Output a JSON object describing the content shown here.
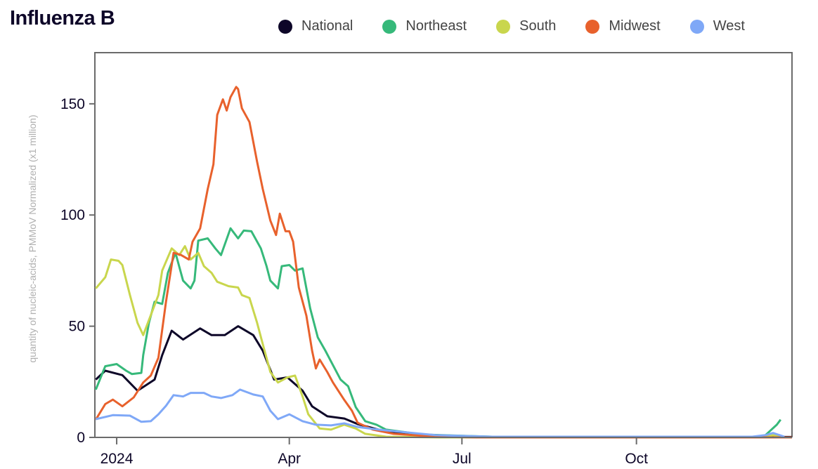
{
  "chart_data": {
    "type": "line",
    "title": "Influenza B",
    "xlabel": "",
    "ylabel": "quantity of nucleic-acids, PMMoV Normalized (x1 million)",
    "x_units": "days since 2024-01-01",
    "xlim": [
      -11.5,
      356
    ],
    "ylim": [
      0,
      173
    ],
    "x_ticks": [
      {
        "value": 0,
        "label": "2024"
      },
      {
        "value": 91,
        "label": "Apr"
      },
      {
        "value": 182,
        "label": "Jul"
      },
      {
        "value": 274,
        "label": "Oct"
      }
    ],
    "y_ticks": [
      {
        "value": 0,
        "label": "0"
      },
      {
        "value": 50,
        "label": "50"
      },
      {
        "value": 100,
        "label": "100"
      },
      {
        "value": 150,
        "label": "150"
      }
    ],
    "legend_position": "top-right",
    "series": [
      {
        "name": "National",
        "color": "#0d0628",
        "points": [
          [
            -11,
            26
          ],
          [
            -6,
            30
          ],
          [
            3,
            28
          ],
          [
            11,
            21
          ],
          [
            20,
            26
          ],
          [
            24,
            37
          ],
          [
            29,
            48
          ],
          [
            35,
            44
          ],
          [
            44,
            49
          ],
          [
            50,
            46
          ],
          [
            57,
            46
          ],
          [
            64,
            50
          ],
          [
            72,
            46
          ],
          [
            77,
            39
          ],
          [
            83,
            26
          ],
          [
            90,
            27
          ],
          [
            98,
            21
          ],
          [
            103,
            14
          ],
          [
            111,
            9.5
          ],
          [
            120,
            8.5
          ],
          [
            127,
            6
          ],
          [
            138,
            3.5
          ],
          [
            153,
            1.6
          ],
          [
            179,
            0.6
          ],
          [
            200,
            0.2
          ],
          [
            356,
            0.2
          ]
        ]
      },
      {
        "name": "Northeast",
        "color": "#36b97a",
        "points": [
          [
            -11,
            21.5
          ],
          [
            -6,
            32
          ],
          [
            0,
            33
          ],
          [
            5,
            30
          ],
          [
            8,
            28.5
          ],
          [
            13,
            29
          ],
          [
            14,
            37
          ],
          [
            17,
            51.5
          ],
          [
            20,
            61
          ],
          [
            24,
            60
          ],
          [
            27,
            74
          ],
          [
            31,
            83
          ],
          [
            35,
            70.5
          ],
          [
            39,
            67
          ],
          [
            41,
            70.5
          ],
          [
            43,
            88.5
          ],
          [
            48,
            89.5
          ],
          [
            52,
            85
          ],
          [
            55,
            82
          ],
          [
            60,
            94
          ],
          [
            64,
            89.5
          ],
          [
            67,
            93
          ],
          [
            71,
            92.7
          ],
          [
            76,
            85
          ],
          [
            79,
            77
          ],
          [
            81,
            70.5
          ],
          [
            85,
            67
          ],
          [
            87,
            77
          ],
          [
            91,
            77.5
          ],
          [
            94,
            75
          ],
          [
            98,
            76
          ],
          [
            102,
            58
          ],
          [
            106,
            45
          ],
          [
            110,
            39
          ],
          [
            114,
            32.5
          ],
          [
            118,
            26
          ],
          [
            122,
            23
          ],
          [
            126,
            13.6
          ],
          [
            131,
            7.3
          ],
          [
            137,
            5.7
          ],
          [
            142,
            3.5
          ],
          [
            161,
            1.3
          ],
          [
            198,
            0.3
          ],
          [
            340,
            0.3
          ],
          [
            342,
            1
          ],
          [
            348,
            5.7
          ],
          [
            350,
            8
          ]
        ]
      },
      {
        "name": "South",
        "color": "#c9d64d",
        "points": [
          [
            -11,
            67
          ],
          [
            -6,
            72
          ],
          [
            -3,
            80
          ],
          [
            1,
            79.4
          ],
          [
            3,
            77.5
          ],
          [
            7,
            64
          ],
          [
            11,
            51.5
          ],
          [
            14,
            46
          ],
          [
            18,
            55
          ],
          [
            22,
            64
          ],
          [
            24,
            75
          ],
          [
            29,
            85
          ],
          [
            33,
            82
          ],
          [
            36,
            86
          ],
          [
            39,
            80
          ],
          [
            43,
            83
          ],
          [
            46,
            77
          ],
          [
            50,
            74
          ],
          [
            53,
            70
          ],
          [
            59,
            68
          ],
          [
            64,
            67.4
          ],
          [
            66,
            64
          ],
          [
            70,
            62.7
          ],
          [
            74,
            51.6
          ],
          [
            77,
            42
          ],
          [
            81,
            29.4
          ],
          [
            85,
            24.7
          ],
          [
            90,
            27
          ],
          [
            94,
            27.8
          ],
          [
            98,
            18.4
          ],
          [
            101,
            10.4
          ],
          [
            107,
            4
          ],
          [
            113,
            3.5
          ],
          [
            120,
            5.7
          ],
          [
            126,
            4
          ],
          [
            131,
            1.6
          ],
          [
            142,
            0.3
          ],
          [
            170,
            0
          ],
          [
            340,
            0
          ],
          [
            346,
            1
          ],
          [
            350,
            0.3
          ]
        ]
      },
      {
        "name": "Midwest",
        "color": "#e8612c",
        "points": [
          [
            -11,
            8
          ],
          [
            -6,
            15
          ],
          [
            -2,
            17
          ],
          [
            3,
            14
          ],
          [
            9,
            18
          ],
          [
            14,
            24.7
          ],
          [
            18,
            27.8
          ],
          [
            22,
            35.8
          ],
          [
            26,
            61
          ],
          [
            30,
            83
          ],
          [
            34,
            82
          ],
          [
            38,
            80
          ],
          [
            40,
            88
          ],
          [
            44,
            94
          ],
          [
            48,
            111.7
          ],
          [
            51,
            122.8
          ],
          [
            53,
            145
          ],
          [
            56,
            152
          ],
          [
            58,
            147
          ],
          [
            60,
            153
          ],
          [
            63,
            157.6
          ],
          [
            64,
            156.6
          ],
          [
            66,
            148
          ],
          [
            70,
            141.8
          ],
          [
            74,
            124
          ],
          [
            77,
            111.7
          ],
          [
            81,
            97.5
          ],
          [
            84,
            91
          ],
          [
            86,
            100.6
          ],
          [
            89,
            92.7
          ],
          [
            91,
            92.7
          ],
          [
            93,
            88
          ],
          [
            96,
            67.4
          ],
          [
            100,
            54.7
          ],
          [
            103,
            39
          ],
          [
            105,
            31
          ],
          [
            107,
            35
          ],
          [
            111,
            29.4
          ],
          [
            114,
            24.7
          ],
          [
            120,
            16.8
          ],
          [
            124,
            12
          ],
          [
            127,
            6.6
          ],
          [
            135,
            3.5
          ],
          [
            146,
            1.6
          ],
          [
            168,
            0.3
          ],
          [
            190,
            0
          ],
          [
            356,
            0
          ]
        ]
      },
      {
        "name": "West",
        "color": "#7fa8f7",
        "points": [
          [
            -11,
            8.2
          ],
          [
            -2,
            10
          ],
          [
            7,
            9.8
          ],
          [
            13,
            7
          ],
          [
            18,
            7.3
          ],
          [
            22,
            10.4
          ],
          [
            26,
            14.2
          ],
          [
            30,
            19
          ],
          [
            35,
            18.4
          ],
          [
            39,
            20
          ],
          [
            46,
            20
          ],
          [
            50,
            18.4
          ],
          [
            55,
            17.7
          ],
          [
            61,
            19
          ],
          [
            65,
            21.5
          ],
          [
            72,
            19.3
          ],
          [
            77,
            18.4
          ],
          [
            81,
            12
          ],
          [
            85,
            8.2
          ],
          [
            91,
            10.4
          ],
          [
            98,
            7.3
          ],
          [
            105,
            5.7
          ],
          [
            113,
            5.4
          ],
          [
            120,
            6.3
          ],
          [
            127,
            4.7
          ],
          [
            138,
            3.5
          ],
          [
            150,
            2.5
          ],
          [
            168,
            1
          ],
          [
            198,
            0.3
          ],
          [
            335,
            0.3
          ],
          [
            342,
            1
          ],
          [
            346,
            2
          ],
          [
            352,
            0.3
          ]
        ]
      }
    ]
  }
}
